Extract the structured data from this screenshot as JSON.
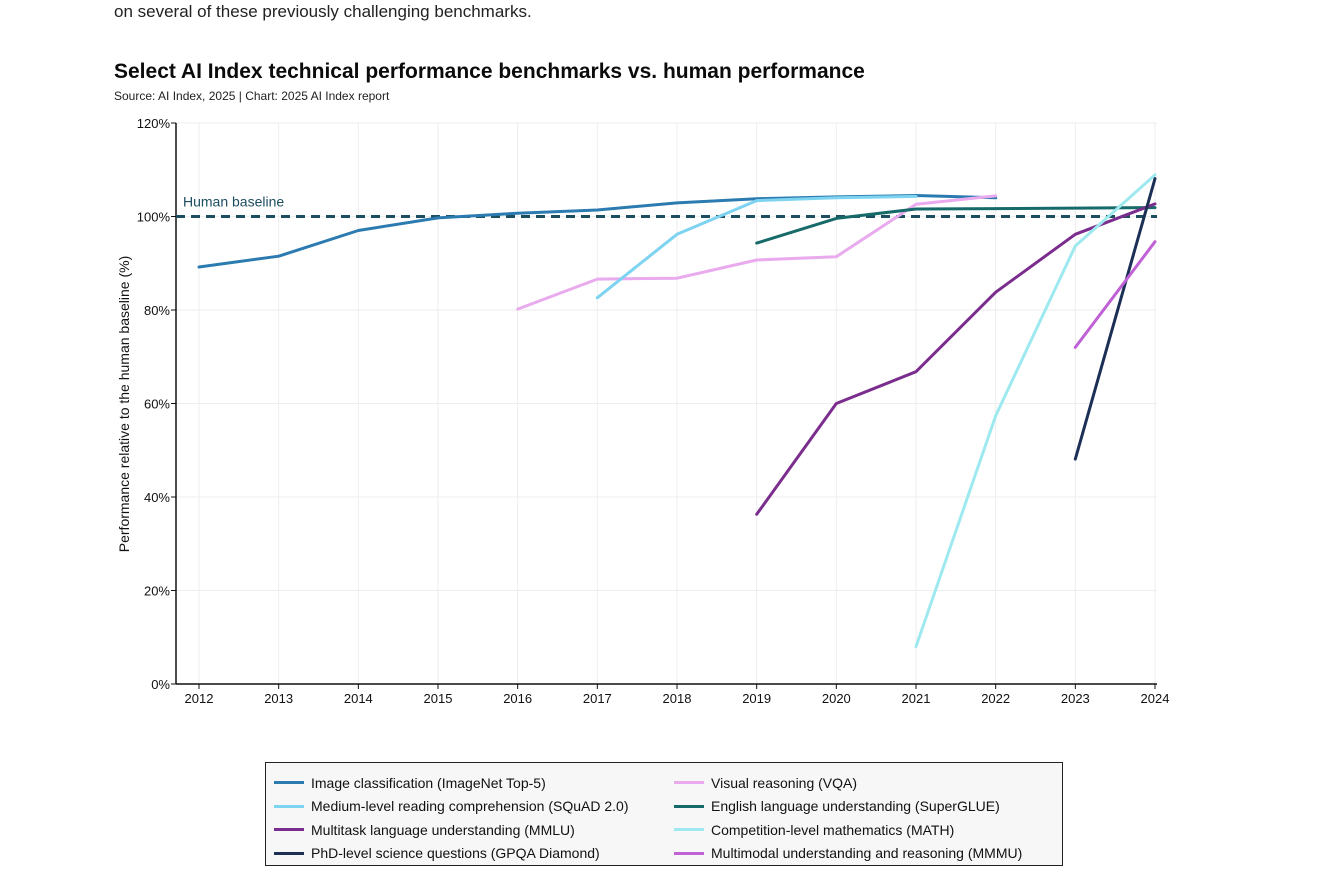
{
  "page": {
    "intro_text": "on several of these previously challenging benchmarks."
  },
  "chart_data": {
    "type": "line",
    "title": "Select AI Index technical performance benchmarks vs. human performance",
    "subtitle": "Source: AI Index, 2025 | Chart: 2025 AI Index report",
    "xlabel": "",
    "ylabel": "Performance relative to the human baseline (%)",
    "xlim": [
      2011.7,
      2024
    ],
    "ylim": [
      0,
      120
    ],
    "x_ticks": [
      2012,
      2013,
      2014,
      2015,
      2016,
      2017,
      2018,
      2019,
      2020,
      2021,
      2022,
      2023,
      2024
    ],
    "y_ticks": [
      0,
      20,
      40,
      60,
      80,
      100,
      120
    ],
    "y_tick_labels": [
      "0%",
      "20%",
      "40%",
      "60%",
      "80%",
      "100%",
      "120%"
    ],
    "grid": true,
    "baseline": {
      "label": "Human baseline",
      "value": 100,
      "color": "#1d4e5f"
    },
    "legend_position": "bottom",
    "series": [
      {
        "name": "Image classification (ImageNet Top-5)",
        "color": "#2b7bb0",
        "x": [
          2012,
          2013,
          2014,
          2015,
          2016,
          2017,
          2018,
          2019,
          2020,
          2021,
          2022
        ],
        "values": [
          89.2,
          91.5,
          97.0,
          99.7,
          100.7,
          101.4,
          102.9,
          103.8,
          104.2,
          104.5,
          104.0
        ]
      },
      {
        "name": "Visual reasoning (VQA)",
        "color": "#e9aaee",
        "x": [
          2016,
          2017,
          2018,
          2019,
          2020,
          2021,
          2022
        ],
        "values": [
          80.2,
          86.6,
          86.8,
          90.7,
          91.4,
          102.6,
          104.4
        ]
      },
      {
        "name": "Medium-level reading comprehension (SQuAD 2.0)",
        "color": "#7dd3f0",
        "x": [
          2017,
          2018,
          2019,
          2020,
          2021
        ],
        "values": [
          82.6,
          96.2,
          103.4,
          104.0,
          104.3
        ]
      },
      {
        "name": "English language understanding (SuperGLUE)",
        "color": "#176a6a",
        "x": [
          2019,
          2020,
          2021,
          2022,
          2023,
          2024
        ],
        "values": [
          94.3,
          99.6,
          101.6,
          101.7,
          101.8,
          101.9
        ]
      },
      {
        "name": "Multitask language understanding (MMLU)",
        "color": "#7b2d8e",
        "x": [
          2019,
          2020,
          2021,
          2022,
          2023,
          2024
        ],
        "values": [
          36.3,
          60.0,
          66.8,
          83.8,
          96.2,
          102.7
        ]
      },
      {
        "name": "Competition-level mathematics (MATH)",
        "color": "#9ee9f0",
        "x": [
          2021,
          2022,
          2023,
          2024
        ],
        "values": [
          8.0,
          57.4,
          93.7,
          108.9
        ]
      },
      {
        "name": "PhD-level science questions (GPQA Diamond)",
        "color": "#1c2f55",
        "x": [
          2023,
          2024
        ],
        "values": [
          48.1,
          108.1
        ]
      },
      {
        "name": "Multimodal understanding and reasoning (MMMU)",
        "color": "#c061d6",
        "x": [
          2023,
          2024
        ],
        "values": [
          72.0,
          94.6
        ]
      }
    ],
    "legend_order": [
      0,
      1,
      2,
      3,
      4,
      5,
      6,
      7
    ]
  }
}
